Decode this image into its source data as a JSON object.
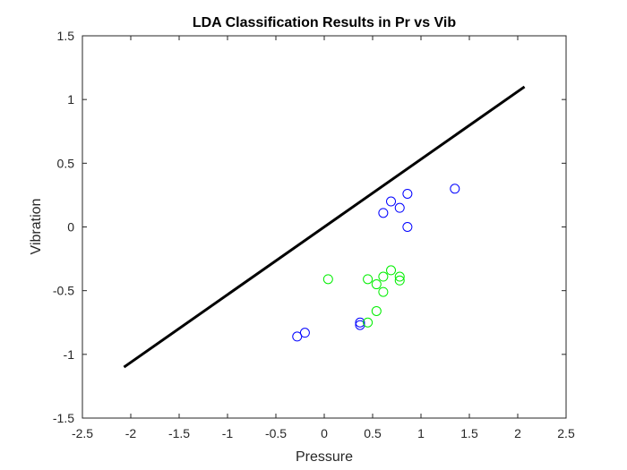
{
  "chart_data": {
    "type": "scatter",
    "title": "LDA Classification Results in Pr vs Vib",
    "xlabel": "Pressure",
    "ylabel": "Vibration",
    "xlim": [
      -2.5,
      2.5
    ],
    "ylim": [
      -1.5,
      1.5
    ],
    "xticks": [
      -2.5,
      -2,
      -1.5,
      -1,
      -0.5,
      0,
      0.5,
      1,
      1.5,
      2,
      2.5
    ],
    "xtick_labels": [
      "-2.5",
      "-2",
      "-1.5",
      "-1",
      "-0.5",
      "0",
      "0.5",
      "1",
      "1.5",
      "2",
      "2.5"
    ],
    "yticks": [
      -1.5,
      -1,
      -0.5,
      0,
      0.5,
      1,
      1.5
    ],
    "ytick_labels": [
      "-1.5",
      "-1",
      "-0.5",
      "0",
      "0.5",
      "1",
      "1.5"
    ],
    "grid": false,
    "series": [
      {
        "marker": "circle-open",
        "color": "#0000ff",
        "x": [
          -0.28,
          -0.2,
          0.37,
          0.37,
          0.61,
          0.69,
          0.78,
          0.86,
          0.86,
          1.35
        ],
        "y": [
          -0.86,
          -0.83,
          -0.75,
          -0.77,
          0.11,
          0.2,
          0.15,
          0.26,
          0.0,
          0.3
        ]
      },
      {
        "marker": "circle-open",
        "color": "#00ee00",
        "x": [
          0.04,
          0.45,
          0.45,
          0.54,
          0.54,
          0.61,
          0.61,
          0.69,
          0.78,
          0.78
        ],
        "y": [
          -0.41,
          -0.41,
          -0.75,
          -0.45,
          -0.66,
          -0.39,
          -0.51,
          -0.34,
          -0.39,
          -0.42
        ]
      },
      {
        "type": "line",
        "color": "#000000",
        "x": [
          -2.07,
          2.07
        ],
        "y": [
          -1.1,
          1.1
        ]
      }
    ]
  }
}
